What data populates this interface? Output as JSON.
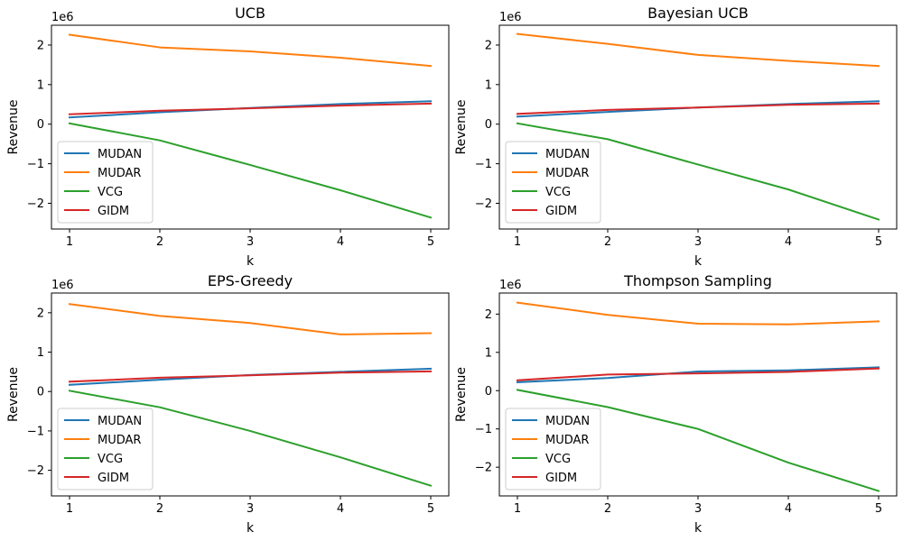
{
  "chart_data": [
    {
      "type": "line",
      "title": "UCB",
      "xlabel": "k",
      "ylabel": "Revenue",
      "offset_text": "1e6",
      "x": [
        1,
        2,
        3,
        4,
        5
      ],
      "xticks": [
        1,
        2,
        3,
        4,
        5
      ],
      "yticks": [
        -2,
        -1,
        0,
        1,
        2
      ],
      "ylim": [
        -2.65,
        2.5
      ],
      "legend_position": "lower-left",
      "series": [
        {
          "name": "MUDAN",
          "color": "#1f77b4",
          "values": [
            0.17,
            0.3,
            0.41,
            0.51,
            0.58
          ]
        },
        {
          "name": "MUDAR",
          "color": "#ff7f0e",
          "values": [
            2.26,
            1.94,
            1.84,
            1.68,
            1.47
          ]
        },
        {
          "name": "VCG",
          "color": "#2ca02c",
          "values": [
            0.02,
            -0.41,
            -1.03,
            -1.67,
            -2.36
          ]
        },
        {
          "name": "GIDM",
          "color": "#d62728",
          "values": [
            0.25,
            0.34,
            0.4,
            0.47,
            0.52
          ]
        }
      ]
    },
    {
      "type": "line",
      "title": "Bayesian UCB",
      "xlabel": "k",
      "ylabel": "Revenue",
      "offset_text": "1e6",
      "x": [
        1,
        2,
        3,
        4,
        5
      ],
      "xticks": [
        1,
        2,
        3,
        4,
        5
      ],
      "yticks": [
        -2,
        -1,
        0,
        1,
        2
      ],
      "ylim": [
        -2.65,
        2.5
      ],
      "legend_position": "lower-left",
      "series": [
        {
          "name": "MUDAN",
          "color": "#1f77b4",
          "values": [
            0.19,
            0.31,
            0.42,
            0.51,
            0.58
          ]
        },
        {
          "name": "MUDAR",
          "color": "#ff7f0e",
          "values": [
            2.28,
            2.03,
            1.75,
            1.6,
            1.47
          ]
        },
        {
          "name": "VCG",
          "color": "#2ca02c",
          "values": [
            0.02,
            -0.38,
            -1.02,
            -1.65,
            -2.41
          ]
        },
        {
          "name": "GIDM",
          "color": "#d62728",
          "values": [
            0.26,
            0.36,
            0.42,
            0.49,
            0.52
          ]
        }
      ]
    },
    {
      "type": "line",
      "title": "EPS-Greedy",
      "xlabel": "k",
      "ylabel": "Revenue",
      "offset_text": "1e6",
      "x": [
        1,
        2,
        3,
        4,
        5
      ],
      "xticks": [
        1,
        2,
        3,
        4,
        5
      ],
      "yticks": [
        -2,
        -1,
        0,
        1,
        2
      ],
      "ylim": [
        -2.65,
        2.5
      ],
      "legend_position": "lower-left",
      "series": [
        {
          "name": "MUDAN",
          "color": "#1f77b4",
          "values": [
            0.17,
            0.3,
            0.42,
            0.5,
            0.58
          ]
        },
        {
          "name": "MUDAR",
          "color": "#ff7f0e",
          "values": [
            2.22,
            1.92,
            1.74,
            1.45,
            1.48
          ]
        },
        {
          "name": "VCG",
          "color": "#2ca02c",
          "values": [
            0.02,
            -0.4,
            -1.0,
            -1.67,
            -2.39
          ]
        },
        {
          "name": "GIDM",
          "color": "#d62728",
          "values": [
            0.25,
            0.35,
            0.41,
            0.48,
            0.51
          ]
        }
      ]
    },
    {
      "type": "line",
      "title": "Thompson Sampling",
      "xlabel": "k",
      "ylabel": "Revenue",
      "offset_text": "1e6",
      "x": [
        1,
        2,
        3,
        4,
        5
      ],
      "xticks": [
        1,
        2,
        3,
        4,
        5
      ],
      "yticks": [
        -2,
        -1,
        0,
        1,
        2
      ],
      "ylim": [
        -2.75,
        2.55
      ],
      "legend_position": "lower-left",
      "series": [
        {
          "name": "MUDAN",
          "color": "#1f77b4",
          "values": [
            0.22,
            0.33,
            0.5,
            0.53,
            0.61
          ]
        },
        {
          "name": "MUDAR",
          "color": "#ff7f0e",
          "values": [
            2.3,
            1.98,
            1.75,
            1.73,
            1.81
          ]
        },
        {
          "name": "VCG",
          "color": "#2ca02c",
          "values": [
            0.02,
            -0.43,
            -1.0,
            -1.88,
            -2.62
          ]
        },
        {
          "name": "GIDM",
          "color": "#d62728",
          "values": [
            0.27,
            0.42,
            0.45,
            0.49,
            0.58
          ]
        }
      ]
    }
  ]
}
